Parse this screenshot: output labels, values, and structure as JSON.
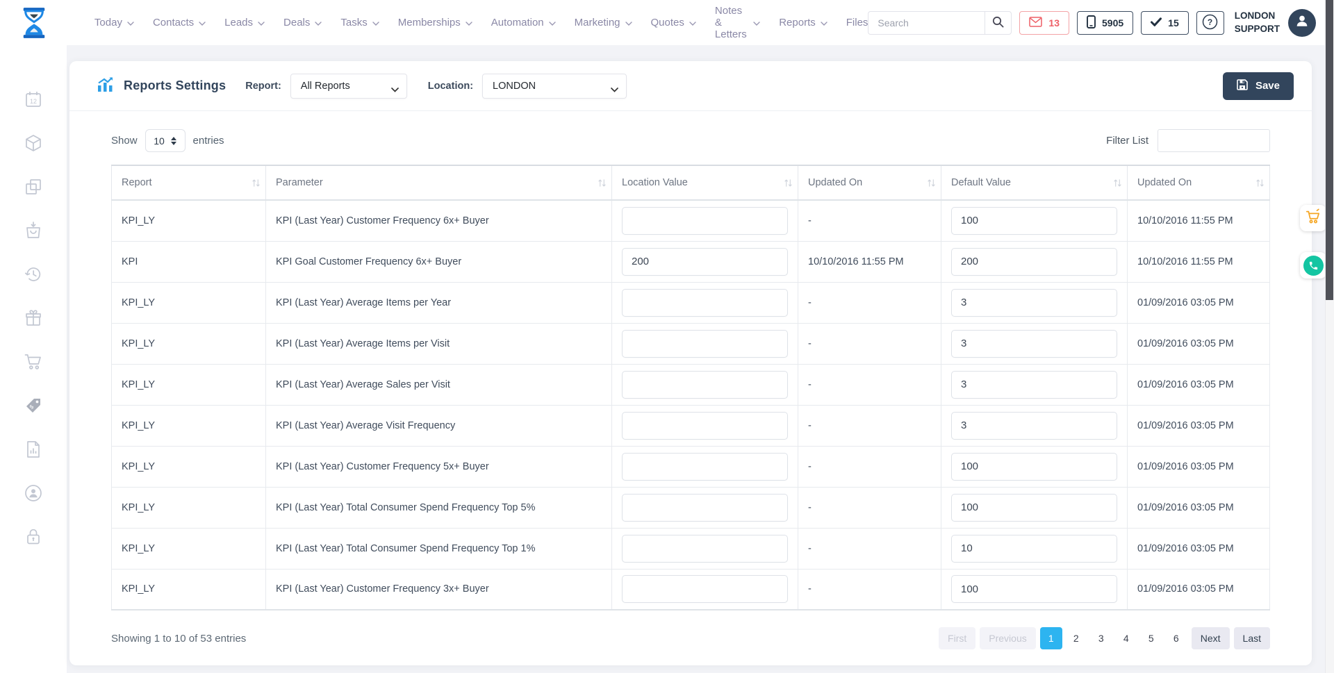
{
  "navbar": {
    "items": [
      {
        "label": "Today",
        "chevron": true
      },
      {
        "label": "Contacts",
        "chevron": true
      },
      {
        "label": "Leads",
        "chevron": true
      },
      {
        "label": "Deals",
        "chevron": true
      },
      {
        "label": "Tasks",
        "chevron": true
      },
      {
        "label": "Memberships",
        "chevron": true
      },
      {
        "label": "Automation",
        "chevron": true
      },
      {
        "label": "Marketing",
        "chevron": true
      },
      {
        "label": "Quotes",
        "chevron": true
      },
      {
        "label": "Notes & Letters",
        "chevron": true
      },
      {
        "label": "Reports",
        "chevron": true
      },
      {
        "label": "Files",
        "chevron": false
      }
    ],
    "search_placeholder": "Search",
    "badges": {
      "mail": "13",
      "phone": "5905",
      "check": "15"
    },
    "help_label": "?",
    "user": {
      "line1": "LONDON",
      "line2": "SUPPORT"
    }
  },
  "sidebar": {
    "calendar_day": "12",
    "icons": [
      "calendar-icon",
      "package-icon",
      "copy-icon",
      "shopping-bag-icon",
      "history-icon",
      "gift-icon",
      "cart-icon",
      "price-tag-icon",
      "report-file-icon",
      "user-sync-icon",
      "lock-icon"
    ]
  },
  "panel": {
    "title": "Reports Settings",
    "report_label": "Report:",
    "report_value": "All Reports",
    "location_label": "Location:",
    "location_value": "LONDON",
    "save_label": "Save"
  },
  "controls": {
    "show_label": "Show",
    "show_value": "10",
    "entries_label": "entries",
    "filter_label": "Filter List",
    "filter_value": ""
  },
  "table": {
    "columns": [
      "Report",
      "Parameter",
      "Location Value",
      "Updated On",
      "Default Value",
      "Updated On"
    ],
    "rows": [
      {
        "report": "KPI_LY",
        "parameter": "KPI (Last Year) Customer Frequency 6x+ Buyer",
        "location_value": "",
        "updated_on": "-",
        "default_value": "100",
        "default_updated_on": "10/10/2016 11:55 PM"
      },
      {
        "report": "KPI",
        "parameter": "KPI Goal Customer Frequency 6x+ Buyer",
        "location_value": "200",
        "updated_on": "10/10/2016 11:55 PM",
        "default_value": "200",
        "default_updated_on": "10/10/2016 11:55 PM"
      },
      {
        "report": "KPI_LY",
        "parameter": "KPI (Last Year) Average Items per Year",
        "location_value": "",
        "updated_on": "-",
        "default_value": "3",
        "default_updated_on": "01/09/2016 03:05 PM"
      },
      {
        "report": "KPI_LY",
        "parameter": "KPI (Last Year) Average Items per Visit",
        "location_value": "",
        "updated_on": "-",
        "default_value": "3",
        "default_updated_on": "01/09/2016 03:05 PM"
      },
      {
        "report": "KPI_LY",
        "parameter": "KPI (Last Year) Average Sales per Visit",
        "location_value": "",
        "updated_on": "-",
        "default_value": "3",
        "default_updated_on": "01/09/2016 03:05 PM"
      },
      {
        "report": "KPI_LY",
        "parameter": "KPI (Last Year) Average Visit Frequency",
        "location_value": "",
        "updated_on": "-",
        "default_value": "3",
        "default_updated_on": "01/09/2016 03:05 PM"
      },
      {
        "report": "KPI_LY",
        "parameter": "KPI (Last Year) Customer Frequency 5x+ Buyer",
        "location_value": "",
        "updated_on": "-",
        "default_value": "100",
        "default_updated_on": "01/09/2016 03:05 PM"
      },
      {
        "report": "KPI_LY",
        "parameter": "KPI (Last Year) Total Consumer Spend Frequency Top 5%",
        "location_value": "",
        "updated_on": "-",
        "default_value": "100",
        "default_updated_on": "01/09/2016 03:05 PM"
      },
      {
        "report": "KPI_LY",
        "parameter": "KPI (Last Year) Total Consumer Spend Frequency Top 1%",
        "location_value": "",
        "updated_on": "-",
        "default_value": "10",
        "default_updated_on": "01/09/2016 03:05 PM"
      },
      {
        "report": "KPI_LY",
        "parameter": "KPI (Last Year) Customer Frequency 3x+ Buyer",
        "location_value": "",
        "updated_on": "-",
        "default_value": "100",
        "default_updated_on": "01/09/2016 03:05 PM"
      }
    ]
  },
  "footer": {
    "summary": "Showing 1 to 10 of 53 entries",
    "pagination": {
      "first": "First",
      "previous": "Previous",
      "pages": [
        "1",
        "2",
        "3",
        "4",
        "5",
        "6"
      ],
      "active_page": "1",
      "next": "Next",
      "last": "Last"
    }
  },
  "colors": {
    "accent_blue": "#2db4f0",
    "navy": "#32455c",
    "alert_red": "#ee5f66",
    "cart_orange": "#f5a623",
    "phone_teal": "#13c5a2",
    "chart_blue": "#2e9fe6"
  }
}
